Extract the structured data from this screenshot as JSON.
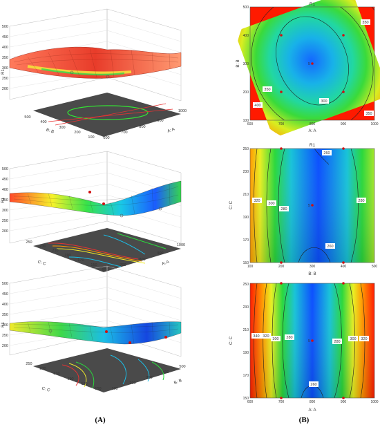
{
  "panel_labels": {
    "left": "(A)",
    "right": "(B)"
  },
  "colors": {
    "low": "#0b4fff",
    "mid": "#22dd22",
    "high": "#ff1a00",
    "floor": "#4a4a4a",
    "grid": "#c8c8c8",
    "point": "#d01010"
  },
  "chart_data": [
    {
      "type": "surface",
      "panel": "A-top",
      "zlabel": "R1",
      "xlabel": "A: A",
      "ylabel": "B: B",
      "x_ticks": [
        "600",
        "700",
        "800",
        "900",
        "1000"
      ],
      "y_ticks": [
        "100",
        "200",
        "300",
        "400",
        "500"
      ],
      "z_ticks": [
        "200",
        "250",
        "300",
        "350",
        "400",
        "450",
        "500"
      ],
      "zlim": [
        200,
        500
      ],
      "colors": "red-dominant"
    },
    {
      "type": "contour",
      "panel": "B-top",
      "title": "R1",
      "xlabel": "A: A",
      "ylabel": "B: B",
      "x_ticks": [
        "600",
        "700",
        "800",
        "900",
        "1000"
      ],
      "y_ticks": [
        "100",
        "200",
        "300",
        "400",
        "500"
      ],
      "xlim": [
        600,
        1000
      ],
      "ylim": [
        100,
        500
      ],
      "center": [
        800,
        300
      ],
      "contour_labels": [
        "300",
        "350",
        "350",
        "350",
        "400"
      ],
      "design_points": [
        {
          "x": 700,
          "y": 400
        },
        {
          "x": 900,
          "y": 400
        },
        {
          "x": 700,
          "y": 200
        },
        {
          "x": 900,
          "y": 200
        },
        {
          "x": 800,
          "y": 300,
          "label": "5"
        }
      ]
    },
    {
      "type": "surface",
      "panel": "A-middle",
      "zlabel": "R1",
      "xlabel": "A: A",
      "ylabel": "C: C",
      "x_ticks": [
        "600",
        "700",
        "800",
        "900",
        "1000"
      ],
      "y_ticks": [
        "150",
        "170",
        "190",
        "210",
        "230",
        "250"
      ],
      "z_ticks": [
        "200",
        "250",
        "300",
        "350",
        "400",
        "450",
        "500"
      ],
      "zlim": [
        200,
        500
      ]
    },
    {
      "type": "contour",
      "panel": "B-middle",
      "title": "R1",
      "xlabel": "B: B",
      "ylabel": "C: C",
      "x_ticks": [
        "100",
        "200",
        "300",
        "400",
        "500"
      ],
      "y_ticks": [
        "150",
        "170",
        "190",
        "210",
        "230",
        "250"
      ],
      "xlim": [
        100,
        500
      ],
      "ylim": [
        150,
        250
      ],
      "contour_labels": [
        "320",
        "300",
        "280",
        "260",
        "280",
        "260"
      ],
      "design_points": [
        {
          "x": 200,
          "y": 250
        },
        {
          "x": 400,
          "y": 250
        },
        {
          "x": 200,
          "y": 150
        },
        {
          "x": 400,
          "y": 150
        },
        {
          "x": 300,
          "y": 200,
          "label": "5"
        }
      ]
    },
    {
      "type": "surface",
      "panel": "A-bottom",
      "zlabel": "R1",
      "xlabel": "B: B",
      "ylabel": "C: C",
      "x_ticks": [
        "100",
        "200",
        "300",
        "400",
        "500"
      ],
      "y_ticks": [
        "150",
        "170",
        "190",
        "210",
        "230",
        "250"
      ],
      "z_ticks": [
        "200",
        "250",
        "300",
        "350",
        "400",
        "450",
        "500"
      ],
      "zlim": [
        200,
        500
      ]
    },
    {
      "type": "contour",
      "panel": "B-bottom",
      "xlabel": "A: A",
      "ylabel": "C: C",
      "x_ticks": [
        "600",
        "700",
        "800",
        "900",
        "1000"
      ],
      "y_ticks": [
        "150",
        "170",
        "190",
        "210",
        "230",
        "250"
      ],
      "xlim": [
        600,
        1000
      ],
      "ylim": [
        150,
        250
      ],
      "contour_labels": [
        "340",
        "320",
        "300",
        "280",
        "260",
        "280",
        "300",
        "320"
      ],
      "design_points": [
        {
          "x": 700,
          "y": 250
        },
        {
          "x": 900,
          "y": 250
        },
        {
          "x": 700,
          "y": 150
        },
        {
          "x": 900,
          "y": 150
        },
        {
          "x": 800,
          "y": 200,
          "label": "5"
        }
      ]
    }
  ]
}
